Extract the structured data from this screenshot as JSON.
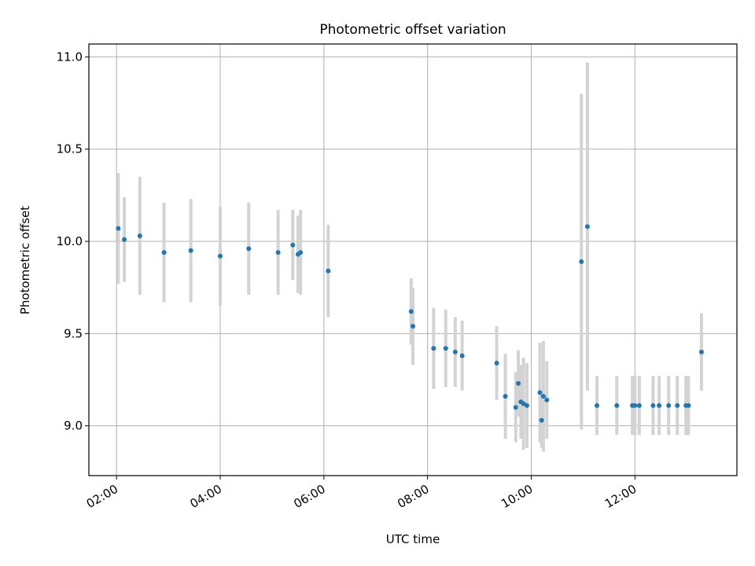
{
  "chart_data": {
    "type": "scatter",
    "title": "Photometric offset variation",
    "xlabel": "UTC time",
    "ylabel": "Photometric offset",
    "xlim": [
      "01:28",
      "13:58"
    ],
    "ylim": [
      8.73,
      11.07
    ],
    "x_ticks": [
      "02:00",
      "04:00",
      "06:00",
      "08:00",
      "10:00",
      "12:00"
    ],
    "y_ticks": [
      9.0,
      9.5,
      10.0,
      10.5,
      11.0
    ],
    "y_tick_labels": [
      "9.0",
      "9.5",
      "10.0",
      "10.5",
      "11.0"
    ],
    "grid": true,
    "colors": {
      "points": "#1f77b4",
      "errorbars": "#d3d3d3",
      "grid": "#b0b0b0"
    },
    "points": [
      {
        "time": "02:02",
        "y": 10.07,
        "yerr": 0.3
      },
      {
        "time": "02:09",
        "y": 10.01,
        "yerr": 0.23
      },
      {
        "time": "02:27",
        "y": 10.03,
        "yerr": 0.32
      },
      {
        "time": "02:55",
        "y": 9.94,
        "yerr": 0.27
      },
      {
        "time": "03:26",
        "y": 9.95,
        "yerr": 0.28
      },
      {
        "time": "04:00",
        "y": 9.92,
        "yerr": 0.27
      },
      {
        "time": "04:33",
        "y": 9.96,
        "yerr": 0.25
      },
      {
        "time": "05:07",
        "y": 9.94,
        "yerr": 0.23
      },
      {
        "time": "05:24",
        "y": 9.98,
        "yerr": 0.19
      },
      {
        "time": "05:30",
        "y": 9.93,
        "yerr": 0.21
      },
      {
        "time": "05:33",
        "y": 9.94,
        "yerr": 0.23
      },
      {
        "time": "06:05",
        "y": 9.84,
        "yerr": 0.25
      },
      {
        "time": "07:41",
        "y": 9.62,
        "yerr": 0.18
      },
      {
        "time": "07:43",
        "y": 9.54,
        "yerr": 0.21
      },
      {
        "time": "08:07",
        "y": 9.42,
        "yerr": 0.22
      },
      {
        "time": "08:21",
        "y": 9.42,
        "yerr": 0.21
      },
      {
        "time": "08:32",
        "y": 9.4,
        "yerr": 0.19
      },
      {
        "time": "08:40",
        "y": 9.38,
        "yerr": 0.19
      },
      {
        "time": "09:20",
        "y": 9.34,
        "yerr": 0.2
      },
      {
        "time": "09:30",
        "y": 9.16,
        "yerr": 0.23
      },
      {
        "time": "09:42",
        "y": 9.1,
        "yerr": 0.19
      },
      {
        "time": "09:45",
        "y": 9.23,
        "yerr": 0.18
      },
      {
        "time": "09:48",
        "y": 9.13,
        "yerr": 0.2
      },
      {
        "time": "09:51",
        "y": 9.12,
        "yerr": 0.25
      },
      {
        "time": "09:55",
        "y": 9.11,
        "yerr": 0.23
      },
      {
        "time": "10:10",
        "y": 9.18,
        "yerr": 0.27
      },
      {
        "time": "10:12",
        "y": 9.03,
        "yerr": 0.15
      },
      {
        "time": "10:14",
        "y": 9.16,
        "yerr": 0.3
      },
      {
        "time": "10:18",
        "y": 9.14,
        "yerr": 0.21
      },
      {
        "time": "10:58",
        "y": 9.89,
        "yerr": 0.91
      },
      {
        "time": "11:05",
        "y": 10.08,
        "yerr": 0.89
      },
      {
        "time": "11:16",
        "y": 9.11,
        "yerr": 0.16
      },
      {
        "time": "11:39",
        "y": 9.11,
        "yerr": 0.16
      },
      {
        "time": "11:57",
        "y": 9.11,
        "yerr": 0.16
      },
      {
        "time": "12:00",
        "y": 9.11,
        "yerr": 0.16
      },
      {
        "time": "12:05",
        "y": 9.11,
        "yerr": 0.16
      },
      {
        "time": "12:21",
        "y": 9.11,
        "yerr": 0.16
      },
      {
        "time": "12:28",
        "y": 9.11,
        "yerr": 0.16
      },
      {
        "time": "12:39",
        "y": 9.11,
        "yerr": 0.16
      },
      {
        "time": "12:49",
        "y": 9.11,
        "yerr": 0.16
      },
      {
        "time": "12:59",
        "y": 9.11,
        "yerr": 0.16
      },
      {
        "time": "13:02",
        "y": 9.11,
        "yerr": 0.16
      },
      {
        "time": "13:17",
        "y": 9.4,
        "yerr": 0.21
      }
    ]
  }
}
